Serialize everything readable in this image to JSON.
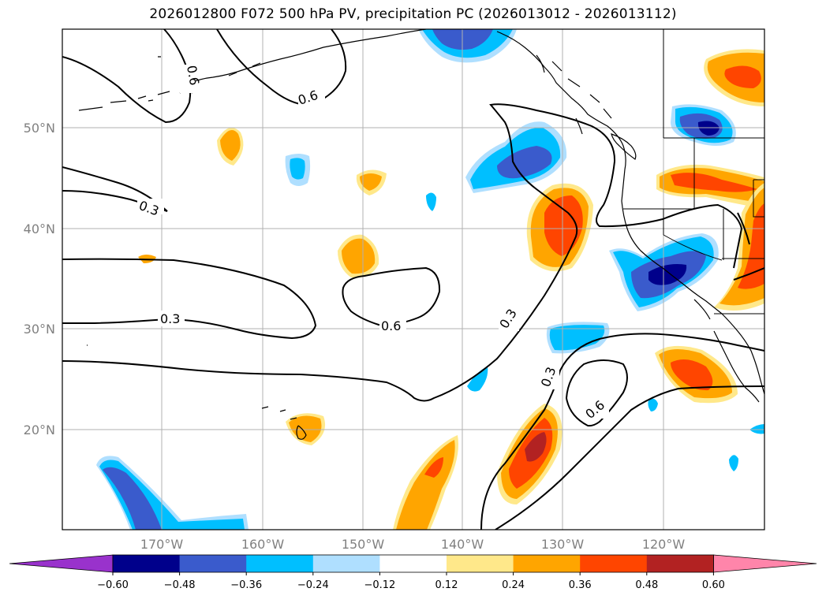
{
  "title": "2026012800 F072 500 hPa PV, precipitation PC (2026013012 - 2026013112)",
  "chart_data": {
    "type": "heatmap",
    "title": "2026012800 F072 500 hPa PV, precipitation PC (2026013012 - 2026013112)",
    "x_axis": {
      "ticks": [
        "170°W",
        "160°W",
        "150°W",
        "140°W",
        "130°W",
        "120°W"
      ]
    },
    "y_axis": {
      "ticks": [
        "50°N",
        "40°N",
        "30°N",
        "20°N"
      ]
    },
    "grid": true,
    "colorbar": {
      "ticks": [
        "−0.60",
        "−0.48",
        "−0.36",
        "−0.24",
        "−0.12",
        "0.12",
        "0.24",
        "0.36",
        "0.48",
        "0.60"
      ],
      "colors": [
        "#9932cc",
        "#00008b",
        "#3a5bcc",
        "#00bfff",
        "#afdfff",
        "#ffffff",
        "#ffe88a",
        "#ffa500",
        "#ff4500",
        "#b22222",
        "#ff85aa"
      ],
      "extend": "both"
    },
    "contours": {
      "levels": [
        "0.3",
        "0.6"
      ],
      "labels": [
        "0.6",
        "0.6",
        "0.3",
        "0.3",
        "0.6",
        "0.3",
        "0.3",
        "0.6"
      ]
    }
  }
}
